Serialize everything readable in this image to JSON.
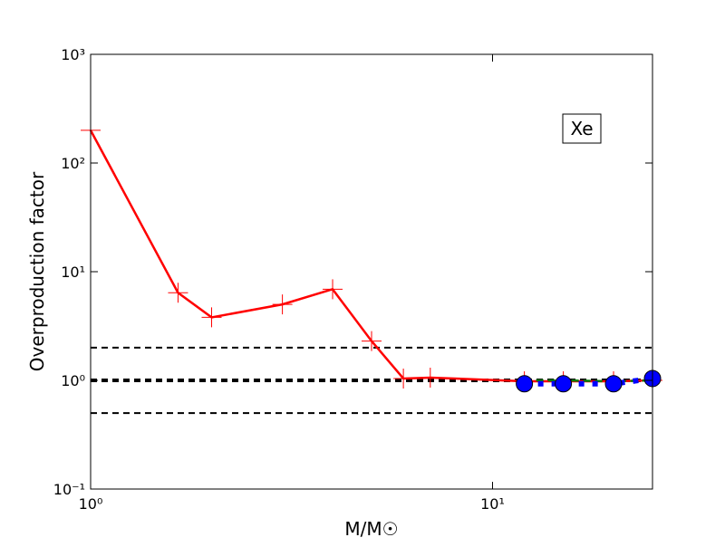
{
  "chart_data": {
    "type": "line",
    "xlabel": "M/M☉",
    "ylabel": "Overproduction factor",
    "annotation": "Xe",
    "xlog": true,
    "ylog": true,
    "xlim": [
      1,
      25
    ],
    "ylim": [
      0.1,
      1000
    ],
    "xticks": [
      {
        "value": 1,
        "label": "10⁰"
      },
      {
        "value": 10,
        "label": "10¹"
      }
    ],
    "yticks": [
      {
        "value": 0.1,
        "label": "10⁻¹"
      },
      {
        "value": 1,
        "label": "10⁰"
      },
      {
        "value": 10,
        "label": "10¹"
      },
      {
        "value": 100,
        "label": "10²"
      },
      {
        "value": 1000,
        "label": "10³"
      }
    ],
    "hlines": [
      0.5,
      1,
      2
    ],
    "series": [
      {
        "color": "#ff0000",
        "marker": "plus",
        "linestyle": "solid",
        "x": [
          1,
          1.65,
          2,
          3,
          4,
          5,
          6,
          7,
          12,
          15,
          20,
          25
        ],
        "values": [
          200,
          6.4,
          3.8,
          5.0,
          6.9,
          2.3,
          1.04,
          1.06,
          0.98,
          0.98,
          0.98,
          1.0
        ]
      },
      {
        "color": "#008000",
        "marker": "point",
        "linestyle": "dashed",
        "x": [
          12,
          15,
          20,
          25
        ],
        "values": [
          1.0,
          1.0,
          0.98,
          1.0
        ]
      },
      {
        "color": "#0000ff",
        "marker": "circle",
        "linestyle": "dotted",
        "x": [
          12,
          15,
          20,
          25
        ],
        "values": [
          0.93,
          0.93,
          0.93,
          1.04
        ]
      }
    ]
  }
}
